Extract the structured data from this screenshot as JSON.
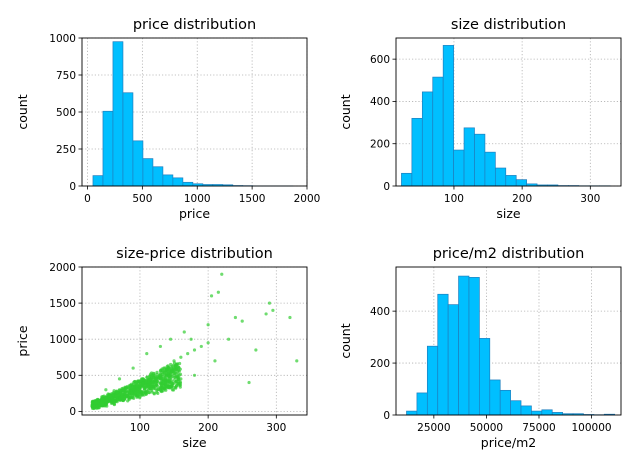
{
  "chart_data": [
    {
      "type": "bar",
      "title": "price distribution",
      "xlabel": "price",
      "ylabel": "count",
      "xlim": [
        -50,
        2000
      ],
      "ylim": [
        0,
        1000
      ],
      "xticks": [
        0,
        500,
        1000,
        1500,
        2000
      ],
      "yticks": [
        0,
        250,
        500,
        750,
        1000
      ],
      "grid": true,
      "bin_edges": [
        50,
        141,
        232,
        323,
        414,
        505,
        596,
        687,
        778,
        869,
        960,
        1051,
        1142,
        1233,
        1324,
        1415,
        1506,
        1597,
        1688,
        1779,
        1870
      ],
      "values": [
        70,
        505,
        975,
        630,
        305,
        185,
        130,
        75,
        55,
        25,
        15,
        10,
        10,
        8,
        3,
        2,
        1,
        1,
        1,
        1
      ],
      "color": "#00bfff"
    },
    {
      "type": "bar",
      "title": "size distribution",
      "xlabel": "size",
      "ylabel": "count",
      "xlim": [
        15,
        345
      ],
      "ylim": [
        0,
        700
      ],
      "xticks": [
        100,
        200,
        300
      ],
      "yticks": [
        0,
        200,
        400,
        600
      ],
      "grid": true,
      "bin_edges": [
        23,
        38.3,
        53.6,
        68.9,
        84.2,
        99.5,
        114.8,
        130.1,
        145.4,
        160.7,
        176,
        191.3,
        206.6,
        221.9,
        237.2,
        252.5,
        267.8,
        283.1,
        298.4,
        313.7,
        329
      ],
      "values": [
        60,
        320,
        445,
        515,
        665,
        170,
        275,
        245,
        160,
        85,
        50,
        30,
        10,
        5,
        5,
        2,
        2,
        1,
        1,
        1
      ],
      "color": "#00bfff"
    },
    {
      "type": "scatter",
      "title": "size-price distribution",
      "xlabel": "size",
      "ylabel": "price",
      "xlim": [
        15,
        345
      ],
      "ylim": [
        -50,
        2000
      ],
      "xticks": [
        100,
        200,
        300
      ],
      "yticks": [
        0,
        500,
        1000,
        1500,
        2000
      ],
      "grid": true,
      "x": [
        30,
        35,
        40,
        45,
        50,
        55,
        60,
        65,
        70,
        75,
        80,
        85,
        90,
        95,
        100,
        105,
        110,
        115,
        120,
        125,
        130,
        135,
        140,
        145,
        150,
        160,
        170,
        180,
        190,
        200,
        205,
        210,
        220,
        230,
        240,
        250,
        260,
        270,
        285,
        290,
        295,
        320,
        330,
        60,
        80,
        100,
        120,
        140,
        160,
        180,
        215,
        200,
        130,
        110,
        90,
        70,
        50,
        145,
        165,
        175
      ],
      "y": [
        80,
        120,
        150,
        170,
        200,
        220,
        250,
        270,
        300,
        320,
        330,
        360,
        370,
        400,
        420,
        440,
        470,
        490,
        520,
        540,
        560,
        600,
        620,
        650,
        700,
        750,
        800,
        850,
        900,
        950,
        1600,
        700,
        1900,
        1000,
        1300,
        1250,
        400,
        850,
        1350,
        1500,
        1400,
        1300,
        700,
        150,
        220,
        280,
        350,
        400,
        450,
        500,
        1650,
        1200,
        900,
        800,
        600,
        450,
        300,
        1000,
        1100,
        1000
      ],
      "color": "#32cd32"
    },
    {
      "type": "bar",
      "title": "price/m2 distribution",
      "xlabel": "price/m2",
      "ylabel": "count",
      "xlim": [
        7000,
        114000
      ],
      "ylim": [
        0,
        570
      ],
      "xticks": [
        25000,
        50000,
        75000,
        100000
      ],
      "yticks": [
        0,
        200,
        400
      ],
      "grid": true,
      "bin_edges": [
        12000,
        16950,
        21900,
        26850,
        31800,
        36750,
        41700,
        46650,
        51600,
        56550,
        61500,
        66450,
        71400,
        76350,
        81300,
        86250,
        91200,
        96150,
        101100,
        106050,
        111000
      ],
      "values": [
        15,
        85,
        265,
        465,
        425,
        535,
        530,
        295,
        135,
        95,
        55,
        35,
        15,
        20,
        10,
        5,
        5,
        2,
        1,
        3
      ],
      "color": "#00bfff"
    }
  ]
}
